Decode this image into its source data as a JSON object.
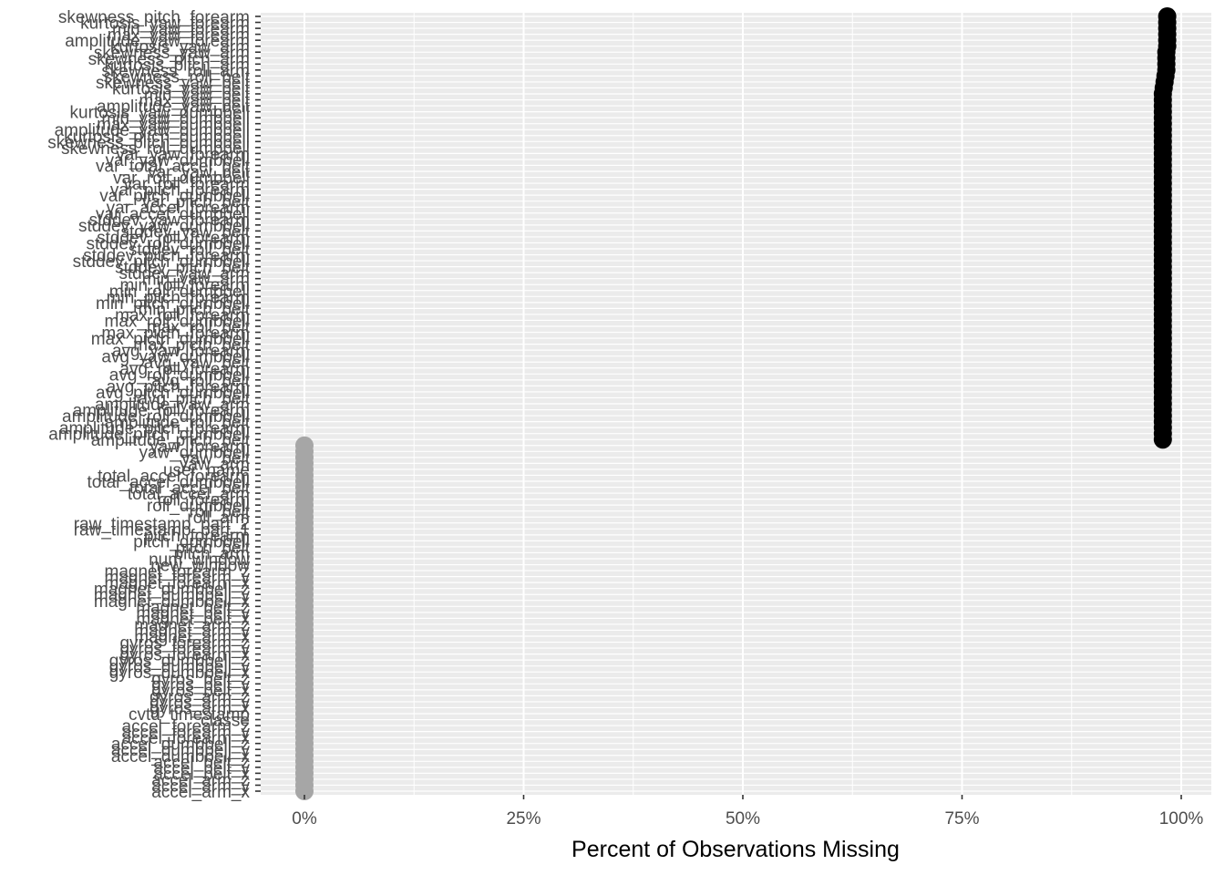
{
  "chart_data": {
    "type": "scatter",
    "title": "",
    "xlabel": "Percent of Observations Missing",
    "ylabel": "",
    "xlim": [
      0,
      100
    ],
    "x_ticks": [
      {
        "value": 0,
        "label": "0%"
      },
      {
        "value": 25,
        "label": "25%"
      },
      {
        "value": 50,
        "label": "50%"
      },
      {
        "value": 75,
        "label": "75%"
      },
      {
        "value": 100,
        "label": "100%"
      }
    ],
    "grid": true,
    "legend": "none",
    "colors": {
      "missing_high": "#000000",
      "missing_none": "#a6a6a6",
      "panel_background": "#ebebeb",
      "grid_line": "#ffffff",
      "tick_text": "#4d4d4d"
    },
    "variables_top_to_bottom": [
      {
        "name": "skewness_pitch_forearm",
        "pct_missing": 98.4
      },
      {
        "name": "kurtosis_yaw_forearm",
        "pct_missing": 98.4
      },
      {
        "name": "min_yaw_forearm",
        "pct_missing": 98.4
      },
      {
        "name": "max_yaw_forearm",
        "pct_missing": 98.4
      },
      {
        "name": "amplitude_yaw_forearm",
        "pct_missing": 98.4
      },
      {
        "name": "kurtosis_yaw_arm",
        "pct_missing": 98.4
      },
      {
        "name": "skewness_yaw_arm",
        "pct_missing": 98.3
      },
      {
        "name": "skewness_pitch_arm",
        "pct_missing": 98.3
      },
      {
        "name": "kurtosis_pitch_arm",
        "pct_missing": 98.3
      },
      {
        "name": "skewness_roll_arm",
        "pct_missing": 98.3
      },
      {
        "name": "skewness_roll_belt",
        "pct_missing": 98.2
      },
      {
        "name": "skewness_yaw_belt",
        "pct_missing": 98.1
      },
      {
        "name": "kurtosis_yaw_belt",
        "pct_missing": 98.0
      },
      {
        "name": "min_yaw_belt",
        "pct_missing": 97.9
      },
      {
        "name": "max_yaw_belt",
        "pct_missing": 97.9
      },
      {
        "name": "amplitude_yaw_belt",
        "pct_missing": 97.9
      },
      {
        "name": "kurtosis_yaw_dumbbell",
        "pct_missing": 97.9
      },
      {
        "name": "min_yaw_dumbbell",
        "pct_missing": 97.9
      },
      {
        "name": "max_yaw_dumbbell",
        "pct_missing": 97.9
      },
      {
        "name": "amplitude_yaw_dumbbell",
        "pct_missing": 97.9
      },
      {
        "name": "kurtosis_pitch_dumbbell",
        "pct_missing": 97.9
      },
      {
        "name": "skewness_pitch_dumbbell",
        "pct_missing": 97.9
      },
      {
        "name": "skewness_roll_dumbbell",
        "pct_missing": 97.9
      },
      {
        "name": "var_yaw_forearm",
        "pct_missing": 97.9
      },
      {
        "name": "var_yaw_dumbbell",
        "pct_missing": 97.9
      },
      {
        "name": "var_total_accel_belt",
        "pct_missing": 97.9
      },
      {
        "name": "var_yaw_belt",
        "pct_missing": 97.9
      },
      {
        "name": "var_roll_dumbbell",
        "pct_missing": 97.9
      },
      {
        "name": "var_roll_forearm",
        "pct_missing": 97.9
      },
      {
        "name": "var_pitch_forearm",
        "pct_missing": 97.9
      },
      {
        "name": "var_pitch_dumbbell",
        "pct_missing": 97.9
      },
      {
        "name": "var_pitch_belt",
        "pct_missing": 97.9
      },
      {
        "name": "var_accel_forearm",
        "pct_missing": 97.9
      },
      {
        "name": "var_accel_dumbbell",
        "pct_missing": 97.9
      },
      {
        "name": "stddev_yaw_forearm",
        "pct_missing": 97.9
      },
      {
        "name": "stddev_yaw_dumbbell",
        "pct_missing": 97.9
      },
      {
        "name": "stddev_yaw_belt",
        "pct_missing": 97.9
      },
      {
        "name": "stddev_roll_forearm",
        "pct_missing": 97.9
      },
      {
        "name": "stddev_roll_dumbbell",
        "pct_missing": 97.9
      },
      {
        "name": "stddev_roll_belt",
        "pct_missing": 97.9
      },
      {
        "name": "stddev_pitch_forearm",
        "pct_missing": 97.9
      },
      {
        "name": "stddev_pitch_dumbbell",
        "pct_missing": 97.9
      },
      {
        "name": "stddev_pitch_belt",
        "pct_missing": 97.9
      },
      {
        "name": "stddev_yaw_arm",
        "pct_missing": 97.9
      },
      {
        "name": "min_yaw_arm",
        "pct_missing": 97.9
      },
      {
        "name": "min_roll_forearm",
        "pct_missing": 97.9
      },
      {
        "name": "min_roll_dumbbell",
        "pct_missing": 97.9
      },
      {
        "name": "min_pitch_forearm",
        "pct_missing": 97.9
      },
      {
        "name": "min_pitch_dumbbell",
        "pct_missing": 97.9
      },
      {
        "name": "min_pitch_belt",
        "pct_missing": 97.9
      },
      {
        "name": "max_roll_forearm",
        "pct_missing": 97.9
      },
      {
        "name": "max_roll_dumbbell",
        "pct_missing": 97.9
      },
      {
        "name": "max_roll_belt",
        "pct_missing": 97.9
      },
      {
        "name": "max_picth_forearm",
        "pct_missing": 97.9
      },
      {
        "name": "max_picth_dumbbell",
        "pct_missing": 97.9
      },
      {
        "name": "max_picth_belt",
        "pct_missing": 97.9
      },
      {
        "name": "avg_yaw_forearm",
        "pct_missing": 97.9
      },
      {
        "name": "avg_yaw_dumbbell",
        "pct_missing": 97.9
      },
      {
        "name": "avg_yaw_belt",
        "pct_missing": 97.9
      },
      {
        "name": "avg_roll_forearm",
        "pct_missing": 97.9
      },
      {
        "name": "avg_roll_dumbbell",
        "pct_missing": 97.9
      },
      {
        "name": "avg_roll_belt",
        "pct_missing": 97.9
      },
      {
        "name": "avg_pitch_forearm",
        "pct_missing": 97.9
      },
      {
        "name": "avg_pitch_dumbbell",
        "pct_missing": 97.9
      },
      {
        "name": "avg_pitch_belt",
        "pct_missing": 97.9
      },
      {
        "name": "amplitude_yaw_arm",
        "pct_missing": 97.9
      },
      {
        "name": "amplitude_roll_forearm",
        "pct_missing": 97.9
      },
      {
        "name": "amplitude_roll_dumbbell",
        "pct_missing": 97.9
      },
      {
        "name": "amplitude_roll_belt",
        "pct_missing": 97.9
      },
      {
        "name": "amplitude_pitch_forearm",
        "pct_missing": 97.9
      },
      {
        "name": "amplitude_pitch_dumbbell",
        "pct_missing": 97.9
      },
      {
        "name": "amplitude_pitch_belt",
        "pct_missing": 97.9
      },
      {
        "name": "yaw_forearm",
        "pct_missing": 0.0
      },
      {
        "name": "yaw_dumbbell",
        "pct_missing": 0.0
      },
      {
        "name": "yaw_belt",
        "pct_missing": 0.0
      },
      {
        "name": "yaw_arm",
        "pct_missing": 0.0
      },
      {
        "name": "user_name",
        "pct_missing": 0.0
      },
      {
        "name": "total_accel_forearm",
        "pct_missing": 0.0
      },
      {
        "name": "total_accel_dumbbell",
        "pct_missing": 0.0
      },
      {
        "name": "total_accel_belt",
        "pct_missing": 0.0
      },
      {
        "name": "total_accel_arm",
        "pct_missing": 0.0
      },
      {
        "name": "roll_forearm",
        "pct_missing": 0.0
      },
      {
        "name": "roll_dumbbell",
        "pct_missing": 0.0
      },
      {
        "name": "roll_belt",
        "pct_missing": 0.0
      },
      {
        "name": "roll_arm",
        "pct_missing": 0.0
      },
      {
        "name": "raw_timestamp_part_2",
        "pct_missing": 0.0
      },
      {
        "name": "raw_timestamp_part_1",
        "pct_missing": 0.0
      },
      {
        "name": "pitch_forearm",
        "pct_missing": 0.0
      },
      {
        "name": "pitch_dumbbell",
        "pct_missing": 0.0
      },
      {
        "name": "pitch_belt",
        "pct_missing": 0.0
      },
      {
        "name": "pitch_arm",
        "pct_missing": 0.0
      },
      {
        "name": "num_window",
        "pct_missing": 0.0
      },
      {
        "name": "new_window",
        "pct_missing": 0.0
      },
      {
        "name": "magnet_forearm_z",
        "pct_missing": 0.0
      },
      {
        "name": "magnet_forearm_y",
        "pct_missing": 0.0
      },
      {
        "name": "magnet_forearm_x",
        "pct_missing": 0.0
      },
      {
        "name": "magnet_dumbbell_z",
        "pct_missing": 0.0
      },
      {
        "name": "magnet_dumbbell_y",
        "pct_missing": 0.0
      },
      {
        "name": "magnet_dumbbell_x",
        "pct_missing": 0.0
      },
      {
        "name": "magnet_belt_z",
        "pct_missing": 0.0
      },
      {
        "name": "magnet_belt_y",
        "pct_missing": 0.0
      },
      {
        "name": "magnet_belt_x",
        "pct_missing": 0.0
      },
      {
        "name": "magnet_arm_z",
        "pct_missing": 0.0
      },
      {
        "name": "magnet_arm_y",
        "pct_missing": 0.0
      },
      {
        "name": "magnet_arm_x",
        "pct_missing": 0.0
      },
      {
        "name": "gyros_forearm_z",
        "pct_missing": 0.0
      },
      {
        "name": "gyros_forearm_y",
        "pct_missing": 0.0
      },
      {
        "name": "gyros_forearm_x",
        "pct_missing": 0.0
      },
      {
        "name": "gyros_dumbbell_z",
        "pct_missing": 0.0
      },
      {
        "name": "gyros_dumbbell_y",
        "pct_missing": 0.0
      },
      {
        "name": "gyros_dumbbell_x",
        "pct_missing": 0.0
      },
      {
        "name": "gyros_belt_z",
        "pct_missing": 0.0
      },
      {
        "name": "gyros_belt_y",
        "pct_missing": 0.0
      },
      {
        "name": "gyros_belt_x",
        "pct_missing": 0.0
      },
      {
        "name": "gyros_arm_z",
        "pct_missing": 0.0
      },
      {
        "name": "gyros_arm_y",
        "pct_missing": 0.0
      },
      {
        "name": "gyros_arm_x",
        "pct_missing": 0.0
      },
      {
        "name": "cvtd_timestamp",
        "pct_missing": 0.0
      },
      {
        "name": "classe",
        "pct_missing": 0.0
      },
      {
        "name": "accel_forearm_z",
        "pct_missing": 0.0
      },
      {
        "name": "accel_forearm_y",
        "pct_missing": 0.0
      },
      {
        "name": "accel_forearm_x",
        "pct_missing": 0.0
      },
      {
        "name": "accel_dumbbell_z",
        "pct_missing": 0.0
      },
      {
        "name": "accel_dumbbell_y",
        "pct_missing": 0.0
      },
      {
        "name": "accel_dumbbell_x",
        "pct_missing": 0.0
      },
      {
        "name": "accel_belt_z",
        "pct_missing": 0.0
      },
      {
        "name": "accel_belt_y",
        "pct_missing": 0.0
      },
      {
        "name": "accel_belt_x",
        "pct_missing": 0.0
      },
      {
        "name": "accel_arm_z",
        "pct_missing": 0.0
      },
      {
        "name": "accel_arm_y",
        "pct_missing": 0.0
      },
      {
        "name": "accel_arm_x",
        "pct_missing": 0.0
      }
    ]
  }
}
